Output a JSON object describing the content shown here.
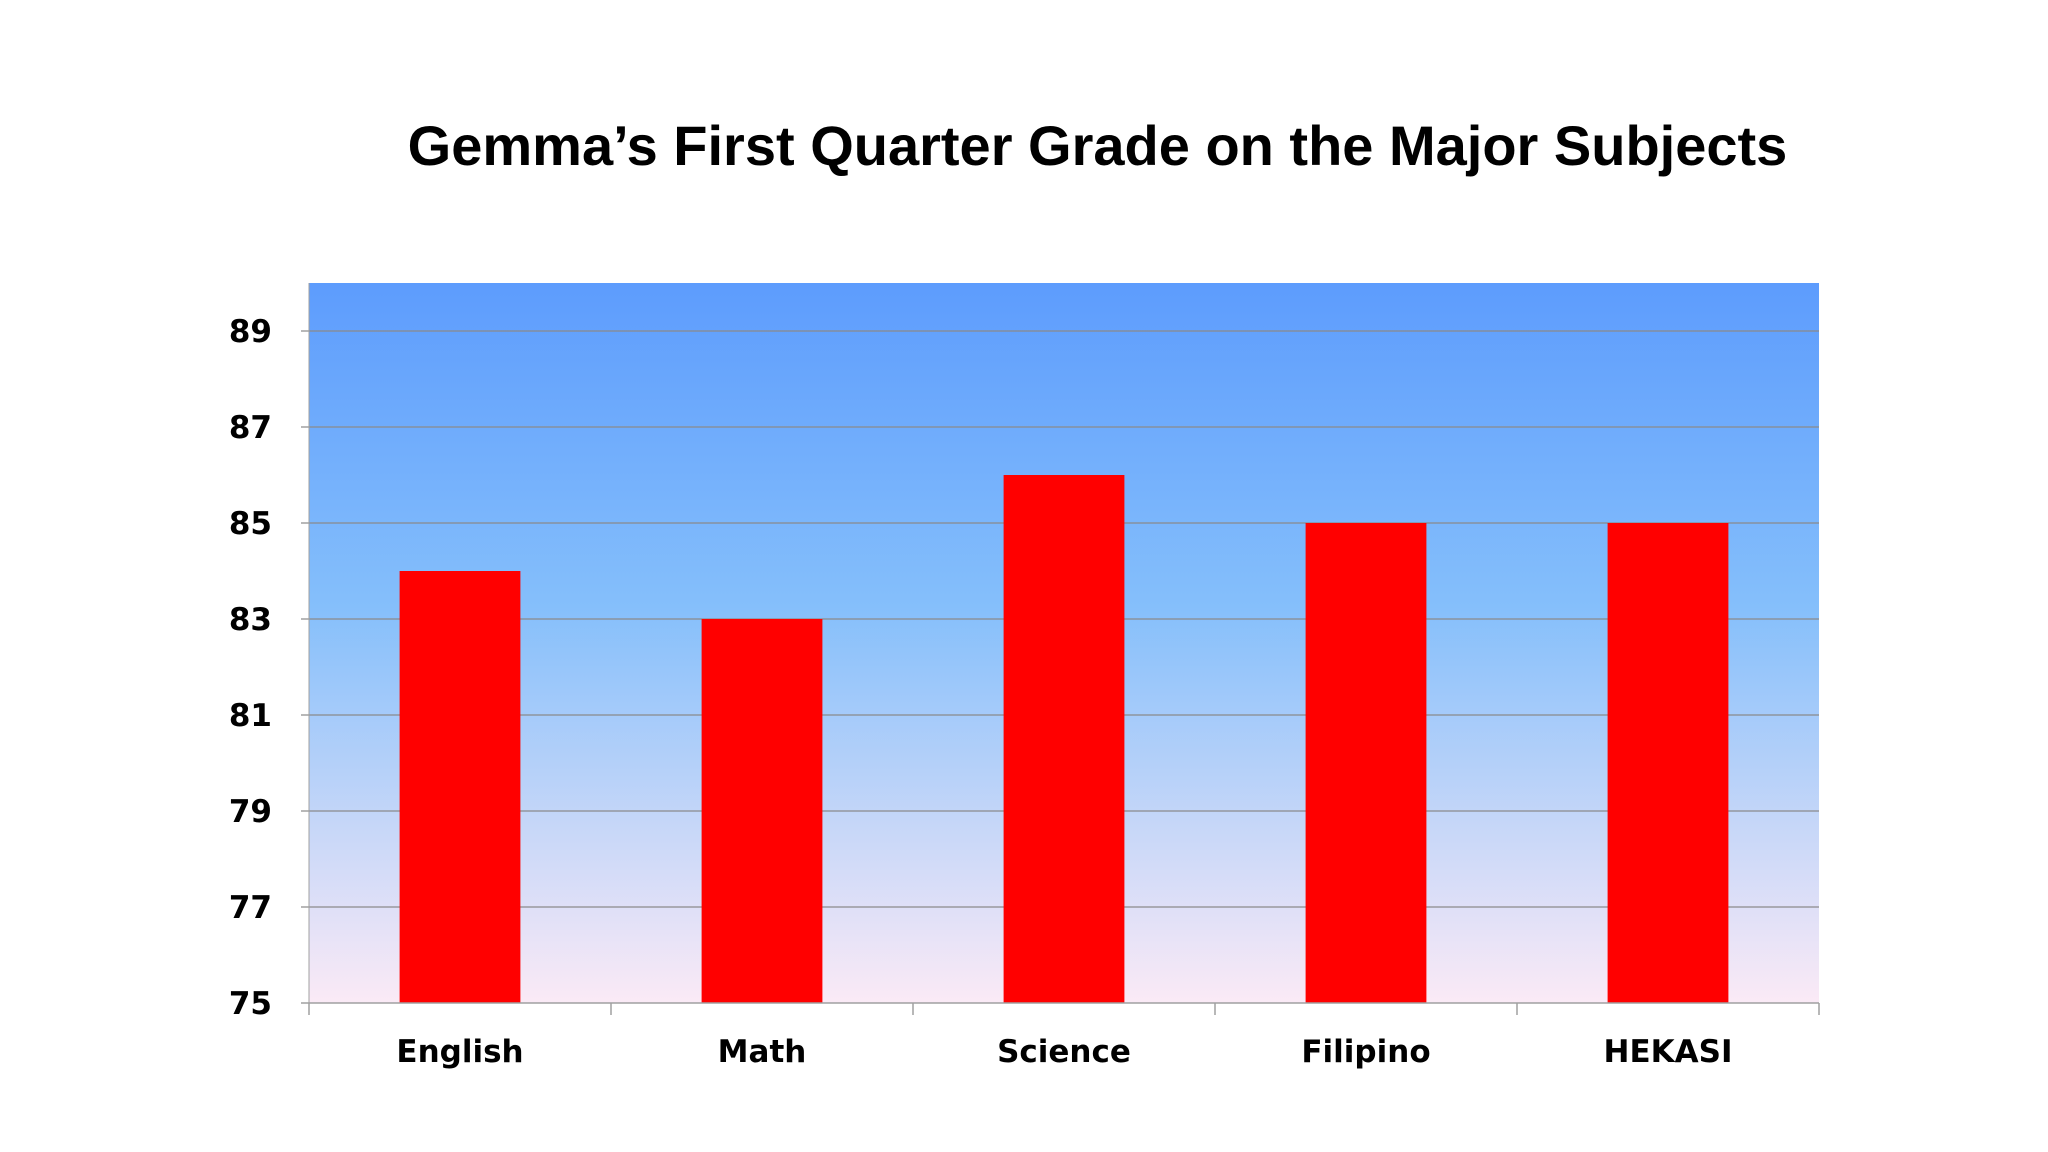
{
  "chart_data": {
    "type": "bar",
    "title": "Gemma’s First Quarter Grade on the Major Subjects",
    "xlabel": "",
    "ylabel": "",
    "categories": [
      "English",
      "Math",
      "Science",
      "Filipino",
      "HEKASI"
    ],
    "series": [
      {
        "values": [
          84,
          83,
          86,
          85,
          85
        ]
      }
    ],
    "ylim": [
      75,
      90
    ],
    "yticks": [
      75,
      77,
      79,
      81,
      83,
      85,
      87,
      89
    ],
    "grid": true,
    "legend": "none",
    "colors": {
      "bar": "#ff0000",
      "plot_bg_top": "#5d9cfd",
      "plot_bg_mid": "#85bffb",
      "plot_bg_bottom": "#fbeaf6",
      "gridline": "#8a8a8a",
      "axis": "#a0a0a0"
    }
  }
}
